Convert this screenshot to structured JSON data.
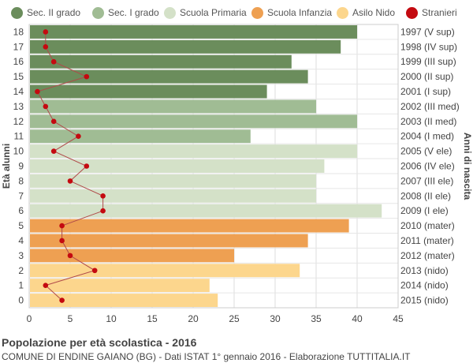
{
  "legend": [
    {
      "label": "Sec. II grado",
      "color": "#6b8d5c"
    },
    {
      "label": "Sec. I grado",
      "color": "#a0bc94"
    },
    {
      "label": "Scuola Primaria",
      "color": "#d4e1c8"
    },
    {
      "label": "Scuola Infanzia",
      "color": "#eea052"
    },
    {
      "label": "Asilo Nido",
      "color": "#fcd68d"
    },
    {
      "label": "Stranieri",
      "color": "#c40a10"
    }
  ],
  "footer": {
    "title": "Popolazione per età scolastica - 2016",
    "subtitle": "COMUNE DI ENDINE GAIANO (BG) - Dati ISTAT 1° gennaio 2016 - Elaborazione TUTTITALIA.IT"
  },
  "chart_data": {
    "type": "bar",
    "orientation": "horizontal",
    "ylabel": "Età alunni",
    "ylabel_right": "Anni di nascita",
    "xlim": [
      0,
      45
    ],
    "xticks": [
      0,
      5,
      10,
      15,
      20,
      25,
      30,
      35,
      40,
      45
    ],
    "grid": true,
    "legend_position": "top",
    "categories": [
      18,
      17,
      16,
      15,
      14,
      13,
      12,
      11,
      10,
      9,
      8,
      7,
      6,
      5,
      4,
      3,
      2,
      1,
      0
    ],
    "birth_years": [
      "1997 (V sup)",
      "1998 (IV sup)",
      "1999 (III sup)",
      "2000 (II sup)",
      "2001 (I sup)",
      "2002 (III med)",
      "2003 (II med)",
      "2004 (I med)",
      "2005 (V ele)",
      "2006 (IV ele)",
      "2007 (III ele)",
      "2008 (II ele)",
      "2009 (I ele)",
      "2010 (mater)",
      "2011 (mater)",
      "2012 (mater)",
      "2013 (nido)",
      "2014 (nido)",
      "2015 (nido)"
    ],
    "values": [
      40,
      38,
      32,
      34,
      29,
      35,
      40,
      27,
      40,
      36,
      35,
      35,
      43,
      39,
      34,
      25,
      33,
      22,
      23
    ],
    "school_level": [
      "Sec. II grado",
      "Sec. II grado",
      "Sec. II grado",
      "Sec. II grado",
      "Sec. II grado",
      "Sec. I grado",
      "Sec. I grado",
      "Sec. I grado",
      "Scuola Primaria",
      "Scuola Primaria",
      "Scuola Primaria",
      "Scuola Primaria",
      "Scuola Primaria",
      "Scuola Infanzia",
      "Scuola Infanzia",
      "Scuola Infanzia",
      "Asilo Nido",
      "Asilo Nido",
      "Asilo Nido"
    ],
    "stranieri": [
      2,
      2,
      3,
      7,
      1,
      2,
      3,
      6,
      3,
      7,
      5,
      9,
      9,
      4,
      4,
      5,
      8,
      2,
      4
    ]
  }
}
